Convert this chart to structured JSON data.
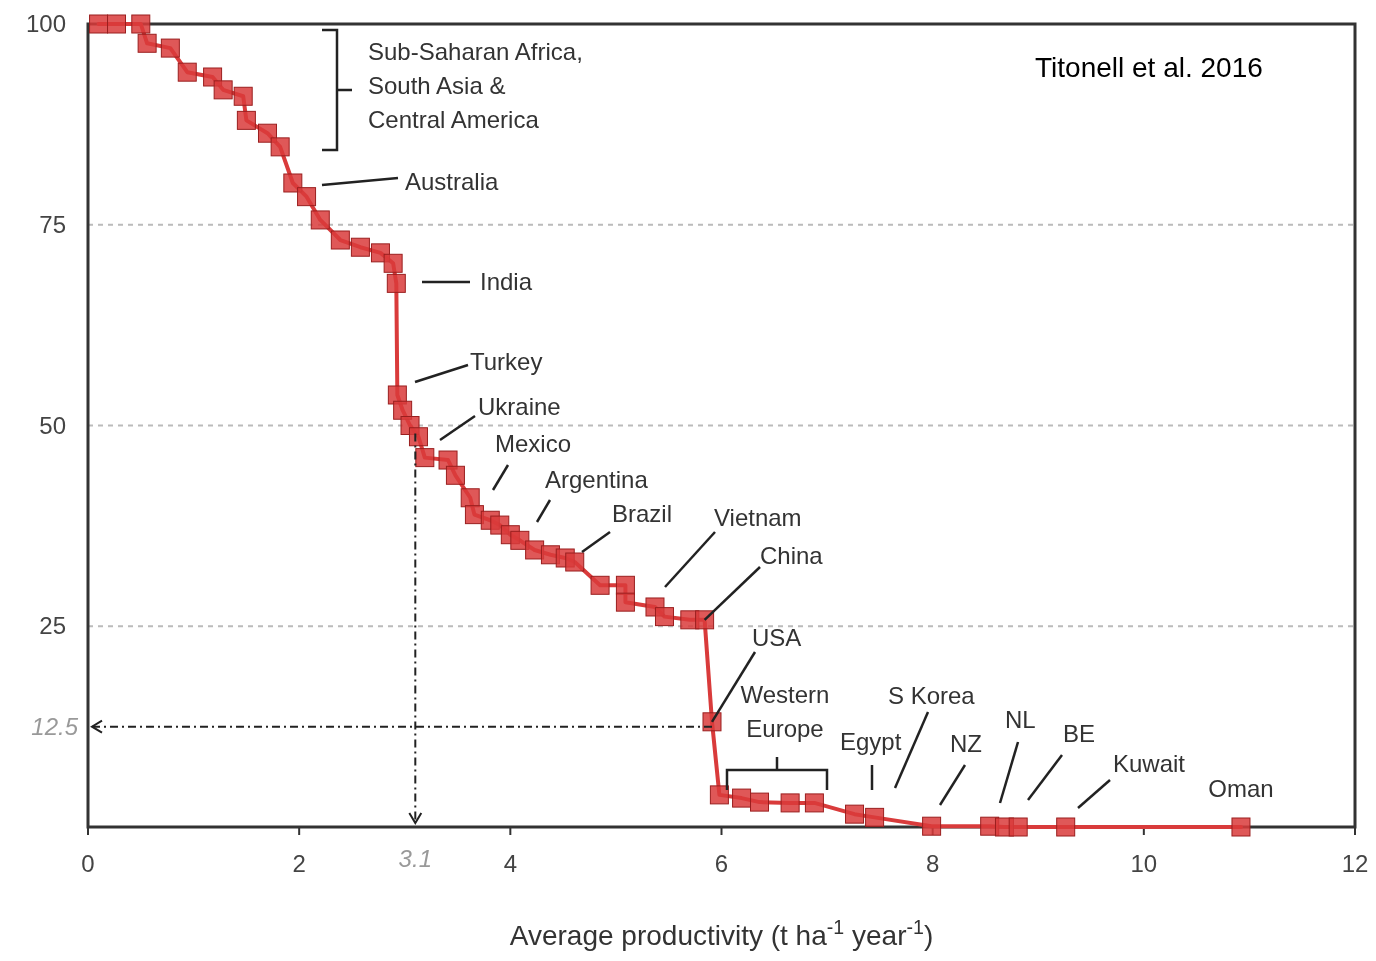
{
  "chart_data": {
    "type": "line",
    "xlabel": "Average productivity (t ha$^{-1}$ year$^{-1}$)",
    "xlim": [
      0,
      12
    ],
    "xticks": [
      0,
      2,
      4,
      6,
      8,
      10,
      12
    ],
    "ylim": [
      0,
      100
    ],
    "yticks": [
      25,
      50,
      75,
      100
    ],
    "grid": "y",
    "marker": "square",
    "line_style": "solid",
    "series": [
      {
        "color": "#d93b3b",
        "x": [
          0.1,
          0.27,
          0.5,
          0.56,
          0.78,
          0.94,
          1.18,
          1.28,
          1.47,
          1.5,
          1.7,
          1.82,
          1.94,
          2.07,
          2.2,
          2.39,
          2.58,
          2.77,
          2.89,
          2.92,
          2.93,
          2.98,
          3.05,
          3.13,
          3.19,
          3.41,
          3.48,
          3.62,
          3.66,
          3.81,
          3.9,
          4.0,
          4.09,
          4.23,
          4.38,
          4.52,
          4.61,
          4.85,
          5.09,
          5.09,
          5.37,
          5.46,
          5.7,
          5.84,
          5.91,
          5.98,
          6.19,
          6.36,
          6.65,
          6.88,
          7.26,
          7.45,
          7.99,
          8.54,
          8.68,
          8.81,
          9.26,
          10.92
        ],
        "values": [
          100,
          100,
          100,
          97.6,
          97,
          94,
          93.4,
          91.8,
          91,
          88,
          86.4,
          84.7,
          80.2,
          78.5,
          75.6,
          73.1,
          72.2,
          71.5,
          70.2,
          67.7,
          53.8,
          51.9,
          50,
          48.6,
          46,
          45.7,
          43.8,
          41,
          38.9,
          38.2,
          37.6,
          36.4,
          35.7,
          34.5,
          33.9,
          33.5,
          33,
          30.1,
          30.1,
          28,
          27.4,
          26.2,
          25.8,
          25.8,
          13.1,
          4,
          3.6,
          3.1,
          3,
          3,
          1.6,
          1.2,
          0.1,
          0.1,
          0,
          0,
          0,
          0
        ]
      }
    ],
    "annotations": [
      "Sub-Saharan Africa,\nSouth Asia &\nCentral America",
      "Australia",
      "India",
      "Turkey",
      "Ukraine",
      "Mexico",
      "Argentina",
      "Brazil",
      "Vietnam",
      {
        "text": "China",
        "x": 5.84,
        "y": 25.8
      },
      {
        "text": "USA",
        "x": 5.91,
        "y": 13.1
      },
      "Western\nEurope",
      "Egypt",
      "S Korea",
      "NZ",
      "NL",
      "BE",
      "Kuwait",
      {
        "text": "Oman",
        "x": 10.92,
        "y": 0
      },
      "Titonell et al. 2016",
      {
        "text": "12.5",
        "x": 5.91,
        "y": 12.5
      },
      {
        "text": "3.1",
        "x": 3.1,
        "y": 49
      }
    ]
  }
}
